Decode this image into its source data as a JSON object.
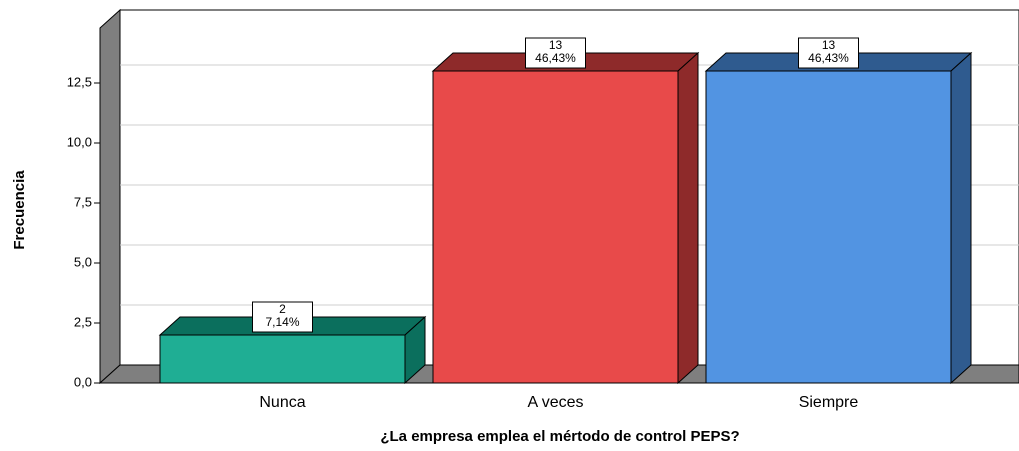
{
  "chart_data": {
    "type": "bar3d",
    "x_label": "¿La empresa emplea el mértodo de control PEPS?",
    "y_label": "Frecuencia",
    "categories": [
      "Nunca",
      "A veces",
      "Siempre"
    ],
    "values": [
      2,
      13,
      13
    ],
    "percentages": [
      7.14,
      46.43,
      46.43
    ],
    "percentage_labels": [
      "7,14%",
      "46,43%",
      "46,43%"
    ],
    "colors": [
      "#1fae94",
      "#e84a4a",
      "#5294e2"
    ],
    "side_colors": [
      "#0b6f5d",
      "#8e2a2a",
      "#2f5b8f"
    ],
    "ylim": [
      0,
      15
    ],
    "yticks": [
      {
        "value": 0,
        "label": "0,0"
      },
      {
        "value": 2.5,
        "label": "2,5"
      },
      {
        "value": 5,
        "label": "5,0"
      },
      {
        "value": 7.5,
        "label": "7,5"
      },
      {
        "value": 10,
        "label": "10,0"
      },
      {
        "value": 12.5,
        "label": "12,5"
      }
    ],
    "grid": true
  }
}
